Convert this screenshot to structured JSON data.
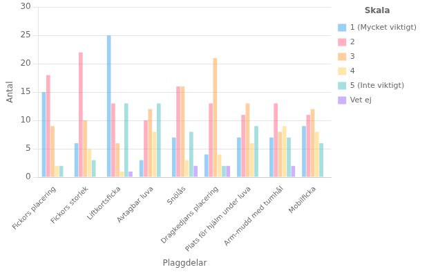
{
  "chart_data": {
    "type": "bar",
    "x_label": "Plaggdelar",
    "y_label": "Antal",
    "legend_title": "Skala",
    "legend": "right",
    "grid": "y",
    "categories": [
      "Fickors placering",
      "Fickors storlek",
      "Liftkortsficka",
      "Avtagbar luva",
      "Snölås",
      "Dragkedjans placering",
      "Plats för hjälm under luva",
      "Arm-mudd med tumhål",
      "Mobilficka"
    ],
    "series": [
      {
        "name": "1 (Mycket viktigt)",
        "values": [
          15,
          6,
          25,
          3,
          7,
          4,
          7,
          7,
          9
        ]
      },
      {
        "name": "2",
        "values": [
          18,
          22,
          13,
          10,
          16,
          13,
          11,
          13,
          11
        ]
      },
      {
        "name": "3",
        "values": [
          9,
          10,
          6,
          12,
          16,
          21,
          13,
          8,
          12
        ]
      },
      {
        "name": "4",
        "values": [
          2,
          5,
          1,
          8,
          3,
          4,
          6,
          9,
          8
        ]
      },
      {
        "name": "5 (Inte viktigt)",
        "values": [
          2,
          3,
          13,
          13,
          8,
          2,
          9,
          7,
          6
        ]
      },
      {
        "name": "Vet ej",
        "values": [
          0,
          0,
          1,
          0,
          2,
          2,
          0,
          2,
          0
        ]
      }
    ],
    "ylim": [
      0,
      30
    ],
    "yticks": [
      0,
      5,
      10,
      15,
      20,
      25,
      30
    ]
  }
}
